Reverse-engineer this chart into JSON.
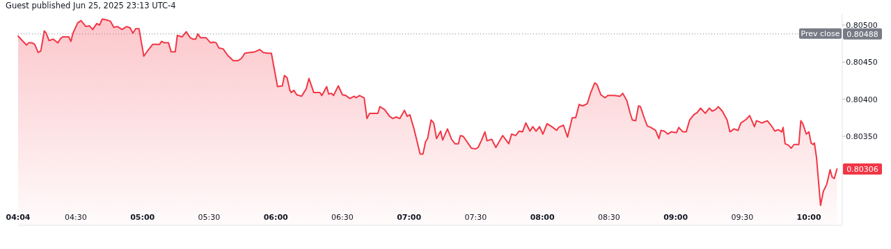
{
  "chart_data": {
    "type": "area",
    "title": "Guest published Jun 25, 2025 23:13 UTC-4",
    "x": [
      4.0667,
      4.13,
      4.145,
      4.171,
      4.191,
      4.217,
      4.237,
      4.263,
      4.278,
      4.299,
      4.33,
      4.365,
      4.386,
      4.401,
      4.447,
      4.463,
      4.478,
      4.514,
      4.539,
      4.575,
      4.601,
      4.626,
      4.657,
      4.678,
      4.698,
      4.729,
      4.76,
      4.785,
      4.811,
      4.847,
      4.882,
      4.908,
      4.928,
      4.949,
      4.974,
      5.01,
      5.041,
      5.077,
      5.128,
      5.143,
      5.164,
      5.195,
      5.215,
      5.246,
      5.261,
      5.297,
      5.328,
      5.358,
      5.379,
      5.399,
      5.415,
      5.435,
      5.476,
      5.512,
      5.532,
      5.553,
      5.573,
      5.604,
      5.64,
      5.681,
      5.717,
      5.742,
      5.768,
      5.804,
      5.845,
      5.88,
      5.906,
      5.937,
      5.967,
      6.013,
      6.049,
      6.065,
      6.085,
      6.106,
      6.116,
      6.136,
      6.157,
      6.193,
      6.228,
      6.249,
      6.285,
      6.331,
      6.346,
      6.382,
      6.397,
      6.418,
      6.433,
      6.469,
      6.5,
      6.525,
      6.556,
      6.587,
      6.602,
      6.628,
      6.663,
      6.684,
      6.704,
      6.766,
      6.781,
      6.817,
      6.853,
      6.878,
      6.904,
      6.93,
      6.965,
      6.986,
      7.006,
      7.037,
      7.083,
      7.104,
      7.124,
      7.139,
      7.165,
      7.185,
      7.206,
      7.237,
      7.252,
      7.288,
      7.319,
      7.344,
      7.37,
      7.385,
      7.406,
      7.441,
      7.467,
      7.498,
      7.518,
      7.544,
      7.569,
      7.585,
      7.62,
      7.651,
      7.702,
      7.748,
      7.769,
      7.8,
      7.825,
      7.851,
      7.876,
      7.907,
      7.928,
      7.953,
      7.979,
      8.004,
      8.035,
      8.071,
      8.107,
      8.122,
      8.158,
      8.189,
      8.224,
      8.25,
      8.276,
      8.301,
      8.337,
      8.363,
      8.393,
      8.409,
      8.439,
      8.47,
      8.491,
      8.516,
      8.542,
      8.583,
      8.603,
      8.634,
      8.659,
      8.675,
      8.7,
      8.721,
      8.736,
      8.762,
      8.787,
      8.813,
      8.849,
      8.874,
      8.89,
      8.915,
      8.941,
      8.966,
      9.007,
      9.023,
      9.054,
      9.079,
      9.105,
      9.135,
      9.161,
      9.187,
      9.222,
      9.253,
      9.274,
      9.299,
      9.32,
      9.35,
      9.386,
      9.407,
      9.437,
      9.468,
      9.489,
      9.53,
      9.555,
      9.591,
      9.606,
      9.622,
      9.647,
      9.688,
      9.719,
      9.744,
      9.77,
      9.796,
      9.806,
      9.821,
      9.847,
      9.867,
      9.888,
      9.924,
      9.939,
      9.954,
      9.98,
      10.0,
      10.016,
      10.031,
      10.041,
      10.057,
      10.077,
      10.087,
      10.108,
      10.133,
      10.159,
      10.174,
      10.19,
      10.21
    ],
    "series": [
      {
        "color": "#f23645",
        "values": [
          0.80485,
          0.80473,
          0.80476,
          0.80476,
          0.80474,
          0.80463,
          0.80465,
          0.80492,
          0.80489,
          0.80479,
          0.80481,
          0.80476,
          0.80482,
          0.80484,
          0.80484,
          0.80478,
          0.80489,
          0.80503,
          0.80506,
          0.80498,
          0.80499,
          0.80494,
          0.80502,
          0.805,
          0.80508,
          0.80507,
          0.80505,
          0.80497,
          0.80498,
          0.80494,
          0.80498,
          0.80496,
          0.80489,
          0.80495,
          0.80495,
          0.80458,
          0.80466,
          0.80474,
          0.80474,
          0.80478,
          0.80476,
          0.80476,
          0.80464,
          0.80464,
          0.80486,
          0.80484,
          0.80491,
          0.80483,
          0.80481,
          0.80481,
          0.80488,
          0.80483,
          0.80483,
          0.80476,
          0.80477,
          0.80476,
          0.80469,
          0.80468,
          0.80459,
          0.80452,
          0.80452,
          0.80455,
          0.80462,
          0.80463,
          0.80464,
          0.80467,
          0.80463,
          0.80462,
          0.80462,
          0.80417,
          0.80418,
          0.80432,
          0.80429,
          0.80412,
          0.80409,
          0.80412,
          0.80406,
          0.80404,
          0.80414,
          0.80428,
          0.80409,
          0.80409,
          0.80405,
          0.80417,
          0.80407,
          0.80408,
          0.80405,
          0.80418,
          0.80406,
          0.80405,
          0.80401,
          0.80404,
          0.80402,
          0.80405,
          0.80402,
          0.80374,
          0.80381,
          0.80381,
          0.8039,
          0.80386,
          0.80377,
          0.80374,
          0.80376,
          0.80374,
          0.80385,
          0.80377,
          0.80379,
          0.8036,
          0.80326,
          0.80326,
          0.80343,
          0.80347,
          0.80372,
          0.80368,
          0.80347,
          0.80357,
          0.80345,
          0.8036,
          0.80346,
          0.8034,
          0.8034,
          0.80351,
          0.8035,
          0.80341,
          0.80334,
          0.80333,
          0.80335,
          0.80345,
          0.80356,
          0.80344,
          0.80346,
          0.80335,
          0.80351,
          0.8034,
          0.80353,
          0.80351,
          0.80357,
          0.80356,
          0.80368,
          0.80357,
          0.80363,
          0.80357,
          0.80363,
          0.80353,
          0.80367,
          0.80363,
          0.80358,
          0.80362,
          0.80365,
          0.80349,
          0.80375,
          0.80375,
          0.80393,
          0.80391,
          0.80394,
          0.80409,
          0.80422,
          0.8042,
          0.80406,
          0.80402,
          0.80405,
          0.80405,
          0.80405,
          0.80404,
          0.80408,
          0.80398,
          0.80381,
          0.80372,
          0.80371,
          0.80391,
          0.8039,
          0.80376,
          0.80364,
          0.80362,
          0.80358,
          0.80347,
          0.80358,
          0.80357,
          0.80353,
          0.80356,
          0.80355,
          0.80362,
          0.80356,
          0.80356,
          0.80372,
          0.80379,
          0.80382,
          0.80388,
          0.80381,
          0.80388,
          0.80384,
          0.80386,
          0.8039,
          0.80384,
          0.80372,
          0.80356,
          0.8036,
          0.80358,
          0.80368,
          0.80373,
          0.80378,
          0.80363,
          0.80371,
          0.8037,
          0.80368,
          0.80371,
          0.80364,
          0.80357,
          0.80359,
          0.80356,
          0.80362,
          0.8034,
          0.80338,
          0.80334,
          0.80339,
          0.80339,
          0.80371,
          0.80367,
          0.80353,
          0.80356,
          0.80341,
          0.80339,
          0.80341,
          0.80321,
          0.80278,
          0.80257,
          0.80276,
          0.80285,
          0.80305,
          0.80295,
          0.80293,
          0.80306
        ]
      }
    ],
    "xlim": [
      4.0667,
      10.25
    ],
    "xticks": [
      {
        "value": 4.0667,
        "label": "04:04"
      },
      {
        "value": 4.5,
        "label": "04:30"
      },
      {
        "value": 5,
        "label": "05:00"
      },
      {
        "value": 5.5,
        "label": "05:30"
      },
      {
        "value": 6,
        "label": "06:00"
      },
      {
        "value": 6.5,
        "label": "06:30"
      },
      {
        "value": 7,
        "label": "07:00"
      },
      {
        "value": 7.5,
        "label": "07:30"
      },
      {
        "value": 8,
        "label": "08:00"
      },
      {
        "value": 8.5,
        "label": "08:30"
      },
      {
        "value": 9,
        "label": "09:00"
      },
      {
        "value": 9.5,
        "label": "09:30"
      },
      {
        "value": 10,
        "label": "10:00"
      }
    ],
    "ylim": [
      0.8023,
      0.80515
    ],
    "yticks": [
      {
        "value": 0.803,
        "label": null
      },
      {
        "value": 0.8035,
        "label": "0.80350"
      },
      {
        "value": 0.804,
        "label": "0.80400"
      },
      {
        "value": 0.8045,
        "label": "0.80450"
      },
      {
        "value": 0.805,
        "label": "0.80500"
      }
    ],
    "ref_lines": [
      {
        "axis": "y",
        "value": 0.80488,
        "label": "Prev close",
        "color": "#787b86",
        "line_style": "dotted"
      }
    ],
    "annotations": [
      "0.80488",
      "0.80306"
    ],
    "grid": false
  }
}
